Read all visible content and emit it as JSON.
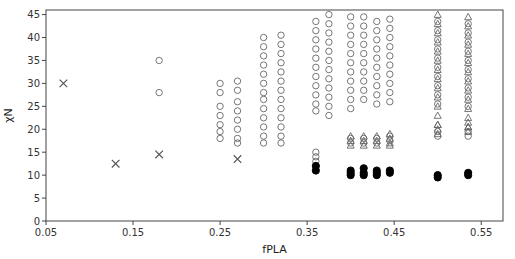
{
  "chart_data": {
    "type": "scatter",
    "x_label": "fPLA",
    "y_label": "χN",
    "xlim": [
      0.05,
      0.575
    ],
    "ylim": [
      0,
      46
    ],
    "xticks": [
      0.05,
      0.15,
      0.25,
      0.35,
      0.45,
      0.55
    ],
    "yticks": [
      0,
      5,
      10,
      15,
      20,
      25,
      30,
      35,
      40,
      45
    ],
    "grid": false,
    "series": [
      {
        "marker": "open-circle",
        "color": "#666666",
        "x": [
          0.18,
          0.18,
          0.25,
          0.25,
          0.25,
          0.25,
          0.25,
          0.25,
          0.25,
          0.27,
          0.27,
          0.27,
          0.27,
          0.27,
          0.27,
          0.27,
          0.27,
          0.3,
          0.3,
          0.3,
          0.3,
          0.3,
          0.3,
          0.3,
          0.3,
          0.3,
          0.3,
          0.3,
          0.3,
          0.3,
          0.32,
          0.32,
          0.32,
          0.32,
          0.32,
          0.32,
          0.32,
          0.32,
          0.32,
          0.32,
          0.32,
          0.32,
          0.32,
          0.36,
          0.36,
          0.36,
          0.36,
          0.36,
          0.36,
          0.36,
          0.36,
          0.36,
          0.36,
          0.36,
          0.36,
          0.36,
          0.36,
          0.375,
          0.375,
          0.375,
          0.375,
          0.375,
          0.375,
          0.375,
          0.375,
          0.375,
          0.375,
          0.375,
          0.375,
          0.4,
          0.4,
          0.4,
          0.4,
          0.4,
          0.4,
          0.4,
          0.4,
          0.4,
          0.4,
          0.4,
          0.4,
          0.4,
          0.415,
          0.415,
          0.415,
          0.415,
          0.415,
          0.415,
          0.415,
          0.415,
          0.415,
          0.415,
          0.415,
          0.415,
          0.43,
          0.43,
          0.43,
          0.43,
          0.43,
          0.43,
          0.43,
          0.43,
          0.43,
          0.43,
          0.43,
          0.43,
          0.445,
          0.445,
          0.445,
          0.445,
          0.445,
          0.445,
          0.445,
          0.445,
          0.445,
          0.445,
          0.445,
          0.445,
          0.5,
          0.5,
          0.5,
          0.5,
          0.5,
          0.5,
          0.5,
          0.5,
          0.5,
          0.5,
          0.5,
          0.5,
          0.535,
          0.535,
          0.535,
          0.535,
          0.535,
          0.535,
          0.535,
          0.535,
          0.535,
          0.535,
          0.535,
          0.535
        ],
        "values": [
          35.0,
          28.0,
          30.0,
          28.0,
          25.0,
          23.0,
          21.0,
          19.5,
          18.0,
          30.5,
          28.5,
          26.0,
          24.0,
          22.0,
          20.0,
          18.0,
          17.0,
          40.0,
          38.0,
          36.0,
          34.0,
          32.0,
          30.0,
          28.0,
          26.5,
          24.5,
          22.5,
          20.5,
          18.5,
          17.0,
          40.5,
          38.5,
          36.5,
          34.5,
          32.5,
          30.5,
          28.5,
          26.5,
          24.5,
          22.5,
          20.5,
          18.5,
          17.0,
          43.5,
          41.5,
          39.5,
          37.5,
          35.5,
          33.5,
          31.5,
          29.5,
          27.5,
          25.5,
          24.0,
          15.0,
          14.0,
          13.0,
          45.0,
          43.0,
          41.0,
          39.0,
          37.0,
          35.0,
          33.0,
          31.0,
          29.0,
          27.0,
          25.0,
          23.0,
          44.5,
          42.5,
          40.5,
          38.5,
          36.5,
          34.5,
          32.5,
          30.5,
          28.5,
          26.5,
          24.5,
          18.0,
          17.0,
          44.5,
          42.5,
          40.5,
          38.5,
          36.5,
          34.5,
          32.5,
          30.5,
          28.5,
          26.5,
          18.0,
          17.0,
          43.5,
          41.5,
          39.5,
          37.5,
          35.5,
          33.5,
          31.5,
          29.5,
          27.5,
          25.5,
          18.0,
          17.0,
          44.0,
          42.0,
          40.0,
          38.0,
          36.0,
          34.0,
          32.0,
          30.0,
          28.0,
          26.0,
          18.5,
          17.5,
          43.5,
          41.5,
          39.5,
          37.5,
          35.5,
          33.5,
          31.5,
          29.5,
          27.5,
          25.5,
          19.5,
          18.5,
          43.0,
          41.0,
          39.0,
          37.0,
          35.0,
          33.0,
          31.0,
          29.0,
          27.0,
          25.0,
          19.5,
          18.5
        ]
      },
      {
        "marker": "open-triangle",
        "color": "#666666",
        "x": [
          0.5,
          0.5,
          0.5,
          0.5,
          0.5,
          0.5,
          0.5,
          0.5,
          0.5,
          0.5,
          0.5,
          0.5,
          0.5,
          0.535,
          0.535,
          0.535,
          0.535,
          0.535,
          0.535,
          0.535,
          0.535,
          0.535,
          0.535,
          0.535,
          0.535,
          0.535
        ],
        "values": [
          45.0,
          43.0,
          41.0,
          39.0,
          37.0,
          35.0,
          33.0,
          31.0,
          29.0,
          27.0,
          25.0,
          23.0,
          21.0,
          44.5,
          42.5,
          40.5,
          38.5,
          36.5,
          34.5,
          32.5,
          30.5,
          28.5,
          26.5,
          24.5,
          22.5,
          20.5
        ]
      },
      {
        "marker": "open-triangle",
        "color": "#666666",
        "x": [
          0.4,
          0.4,
          0.4,
          0.415,
          0.415,
          0.415,
          0.43,
          0.43,
          0.43,
          0.445,
          0.445,
          0.445,
          0.445,
          0.5,
          0.5,
          0.5,
          0.535,
          0.535,
          0.535
        ],
        "values": [
          18.5,
          17.5,
          16.5,
          18.5,
          17.5,
          16.5,
          18.5,
          17.5,
          16.5,
          19.0,
          18.0,
          17.0,
          16.5,
          21.0,
          20.0,
          19.0,
          21.5,
          20.5,
          19.5
        ]
      },
      {
        "marker": "circle",
        "color": "black",
        "x": [
          0.36,
          0.36,
          0.4,
          0.4,
          0.4,
          0.415,
          0.415,
          0.415,
          0.43,
          0.43,
          0.43,
          0.445,
          0.445,
          0.5,
          0.5,
          0.535,
          0.535
        ],
        "values": [
          12.0,
          11.0,
          11.0,
          10.5,
          10.0,
          11.5,
          10.5,
          10.0,
          11.0,
          10.5,
          10.0,
          11.0,
          10.5,
          10.0,
          9.5,
          10.5,
          10.0
        ]
      },
      {
        "marker": "x",
        "color": "#555555",
        "x": [
          0.07,
          0.13,
          0.18,
          0.27
        ],
        "values": [
          30.0,
          12.5,
          14.5,
          13.5
        ]
      }
    ]
  }
}
